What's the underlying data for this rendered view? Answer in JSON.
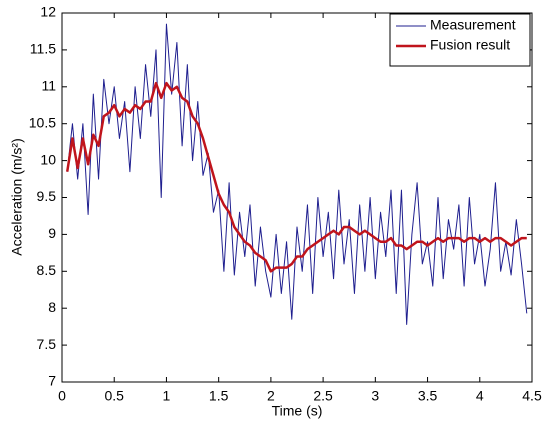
{
  "chart_data": {
    "type": "line",
    "xlabel": "Time (s)",
    "ylabel": "Acceleration (m/s²)",
    "x": [
      0.05,
      0.1,
      0.15,
      0.2,
      0.25,
      0.3,
      0.35,
      0.4,
      0.45,
      0.5,
      0.55,
      0.6,
      0.65,
      0.7,
      0.75,
      0.8,
      0.85,
      0.9,
      0.95,
      1.0,
      1.05,
      1.1,
      1.15,
      1.2,
      1.25,
      1.3,
      1.35,
      1.4,
      1.45,
      1.5,
      1.55,
      1.6,
      1.65,
      1.7,
      1.75,
      1.8,
      1.85,
      1.9,
      1.95,
      2.0,
      2.05,
      2.1,
      2.15,
      2.2,
      2.25,
      2.3,
      2.35,
      2.4,
      2.45,
      2.5,
      2.55,
      2.6,
      2.65,
      2.7,
      2.75,
      2.8,
      2.85,
      2.9,
      2.95,
      3.0,
      3.05,
      3.1,
      3.15,
      3.2,
      3.25,
      3.3,
      3.35,
      3.4,
      3.45,
      3.5,
      3.55,
      3.6,
      3.65,
      3.7,
      3.75,
      3.8,
      3.85,
      3.9,
      3.95,
      4.0,
      4.05,
      4.1,
      4.15,
      4.2,
      4.25,
      4.3,
      4.35,
      4.4,
      4.45
    ],
    "series": [
      {
        "name": "Measurement",
        "color": "#1f1f8f",
        "width": 1,
        "values": [
          9.85,
          10.5,
          9.75,
          10.5,
          9.27,
          10.9,
          9.75,
          11.1,
          10.5,
          11.0,
          10.3,
          10.8,
          9.85,
          11.0,
          10.3,
          11.3,
          10.6,
          11.5,
          9.5,
          11.85,
          10.9,
          11.6,
          10.2,
          11.3,
          10.0,
          10.8,
          9.8,
          10.1,
          9.3,
          9.6,
          8.5,
          9.7,
          8.45,
          9.3,
          8.7,
          9.4,
          8.3,
          9.1,
          8.5,
          8.15,
          9.0,
          8.2,
          8.9,
          7.85,
          9.1,
          8.5,
          9.4,
          8.2,
          9.5,
          8.7,
          9.3,
          8.4,
          9.6,
          8.6,
          9.2,
          8.2,
          9.4,
          8.5,
          9.5,
          8.4,
          9.3,
          8.7,
          9.6,
          8.2,
          9.6,
          7.78,
          9.0,
          9.7,
          8.6,
          8.9,
          8.3,
          9.5,
          8.4,
          9.2,
          8.8,
          9.4,
          8.3,
          9.5,
          8.6,
          9.0,
          8.3,
          8.8,
          9.7,
          8.5,
          8.9,
          8.45,
          9.2,
          8.6,
          7.93
        ]
      },
      {
        "name": "Fusion result",
        "color": "#c0141c",
        "width": 2.5,
        "values": [
          9.85,
          10.3,
          9.9,
          10.3,
          9.95,
          10.35,
          10.2,
          10.6,
          10.65,
          10.75,
          10.6,
          10.7,
          10.65,
          10.75,
          10.7,
          10.8,
          10.8,
          11.05,
          10.85,
          11.05,
          10.95,
          11.0,
          10.85,
          10.8,
          10.6,
          10.5,
          10.3,
          10.05,
          9.8,
          9.55,
          9.4,
          9.3,
          9.1,
          9.0,
          8.9,
          8.85,
          8.75,
          8.7,
          8.65,
          8.5,
          8.55,
          8.55,
          8.55,
          8.6,
          8.7,
          8.7,
          8.8,
          8.85,
          8.9,
          8.95,
          9.0,
          9.05,
          9.0,
          9.1,
          9.1,
          9.05,
          9.0,
          9.05,
          9.0,
          8.95,
          8.9,
          8.9,
          8.95,
          8.85,
          8.85,
          8.8,
          8.85,
          8.9,
          8.9,
          8.85,
          8.9,
          8.95,
          8.9,
          8.95,
          8.95,
          8.95,
          8.9,
          8.95,
          8.95,
          8.9,
          8.95,
          8.9,
          8.95,
          8.95,
          8.9,
          8.85,
          8.9,
          8.95,
          8.95
        ]
      }
    ],
    "xlim": [
      0,
      4.5
    ],
    "xticks": [
      0,
      0.5,
      1,
      1.5,
      2,
      2.5,
      3,
      3.5,
      4,
      4.5
    ],
    "ylim": [
      7,
      12
    ],
    "yticks": [
      7,
      7.5,
      8,
      8.5,
      9,
      9.5,
      10,
      10.5,
      11,
      11.5,
      12
    ],
    "grid": false,
    "legend": "upper right"
  }
}
